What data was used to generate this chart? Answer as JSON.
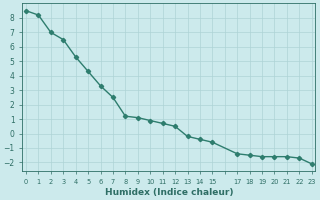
{
  "x": [
    0,
    1,
    2,
    3,
    4,
    5,
    6,
    7,
    8,
    9,
    10,
    11,
    12,
    13,
    14,
    15,
    17,
    18,
    19,
    20,
    21,
    22,
    23
  ],
  "y": [
    8.5,
    8.2,
    7.0,
    6.5,
    5.3,
    4.3,
    3.3,
    2.5,
    1.2,
    1.1,
    0.9,
    0.7,
    0.5,
    -0.2,
    -0.4,
    -0.6,
    -1.4,
    -1.5,
    -1.6,
    -1.6,
    -1.6,
    -1.7,
    -2.1
  ],
  "line_color": "#2e7d6e",
  "marker": "D",
  "markersize": 2.2,
  "linewidth": 1.0,
  "xlabel": "Humidex (Indice chaleur)",
  "bg_color": "#cceaec",
  "grid_color": "#aed4d6",
  "tick_color": "#2e6e65",
  "xlabel_color": "#2e6e65",
  "yticks": [
    -2,
    -1,
    0,
    1,
    2,
    3,
    4,
    5,
    6,
    7,
    8
  ],
  "xtick_positions": [
    0,
    1,
    2,
    3,
    4,
    5,
    6,
    7,
    8,
    9,
    10,
    11,
    12,
    13,
    14,
    15,
    16,
    17,
    18,
    19,
    20,
    21,
    22,
    23
  ],
  "xtick_labels": [
    "0",
    "1",
    "2",
    "3",
    "4",
    "5",
    "6",
    "7",
    "8",
    "9",
    "10",
    "11",
    "12",
    "13",
    "14",
    "15",
    "",
    "17",
    "18",
    "19",
    "20",
    "21",
    "22",
    "23"
  ],
  "xlim": [
    -0.3,
    23.3
  ],
  "ylim": [
    -2.6,
    9.0
  ],
  "ytick_fontsize": 5.5,
  "xtick_fontsize": 4.8,
  "xlabel_fontsize": 6.5
}
